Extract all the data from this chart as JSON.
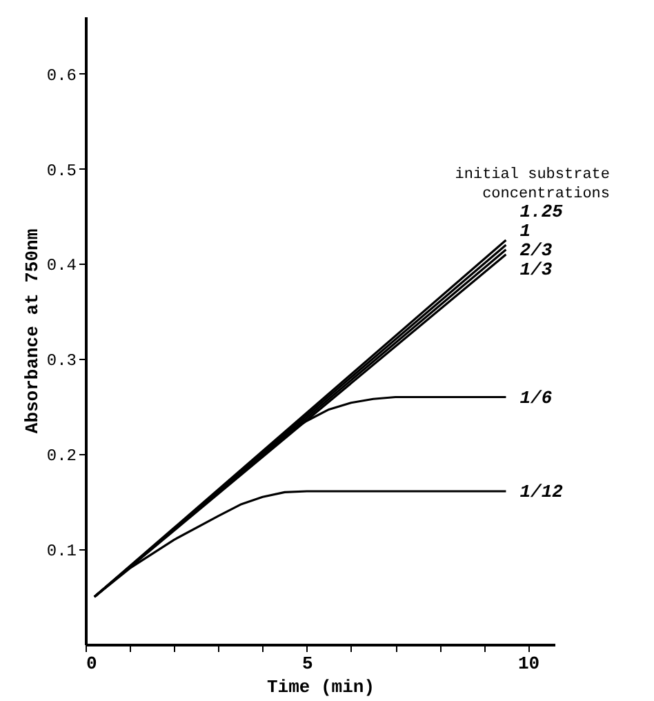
{
  "chart_data": {
    "type": "line",
    "xlabel": "Time  (min)",
    "ylabel": "Absorbance at 750nm",
    "legend_title": "initial substrate concentrations",
    "xlim": [
      0,
      10.6
    ],
    "ylim": [
      0,
      0.66
    ],
    "xticks": [
      0,
      {
        "value": 1,
        "label": null
      },
      {
        "value": 2,
        "label": null
      },
      {
        "value": 3,
        "label": null
      },
      {
        "value": 4,
        "label": null
      },
      5,
      {
        "value": 6,
        "label": null
      },
      {
        "value": 7,
        "label": null
      },
      {
        "value": 8,
        "label": null
      },
      {
        "value": 9,
        "label": null
      },
      10
    ],
    "yticks": [
      0.1,
      0.2,
      0.3,
      0.4,
      0.5,
      0.6
    ],
    "grid": false,
    "marker": "none",
    "line_style": "solid",
    "series": [
      {
        "name": "1.25",
        "color": "#000000",
        "x": [
          0.2,
          9.5
        ],
        "values": [
          0.05,
          0.425
        ]
      },
      {
        "name": "1",
        "color": "#000000",
        "x": [
          0.2,
          9.5
        ],
        "values": [
          0.05,
          0.42
        ]
      },
      {
        "name": "2/3",
        "color": "#000000",
        "x": [
          0.2,
          9.5
        ],
        "values": [
          0.05,
          0.415
        ]
      },
      {
        "name": "1/3",
        "color": "#000000",
        "x": [
          0.2,
          9.5
        ],
        "values": [
          0.05,
          0.41
        ]
      },
      {
        "name": "1/6",
        "color": "#000000",
        "x": [
          0.2,
          4.5,
          5,
          5.5,
          6,
          6.5,
          7,
          8,
          9.5
        ],
        "values": [
          0.05,
          0.22,
          0.235,
          0.247,
          0.254,
          0.258,
          0.26,
          0.26,
          0.26
        ]
      },
      {
        "name": "1/12",
        "color": "#000000",
        "x": [
          0.2,
          1,
          2,
          3,
          3.5,
          4,
          4.5,
          5,
          7,
          9.5
        ],
        "values": [
          0.05,
          0.08,
          0.11,
          0.135,
          0.147,
          0.155,
          0.16,
          0.161,
          0.161,
          0.161
        ]
      }
    ]
  }
}
